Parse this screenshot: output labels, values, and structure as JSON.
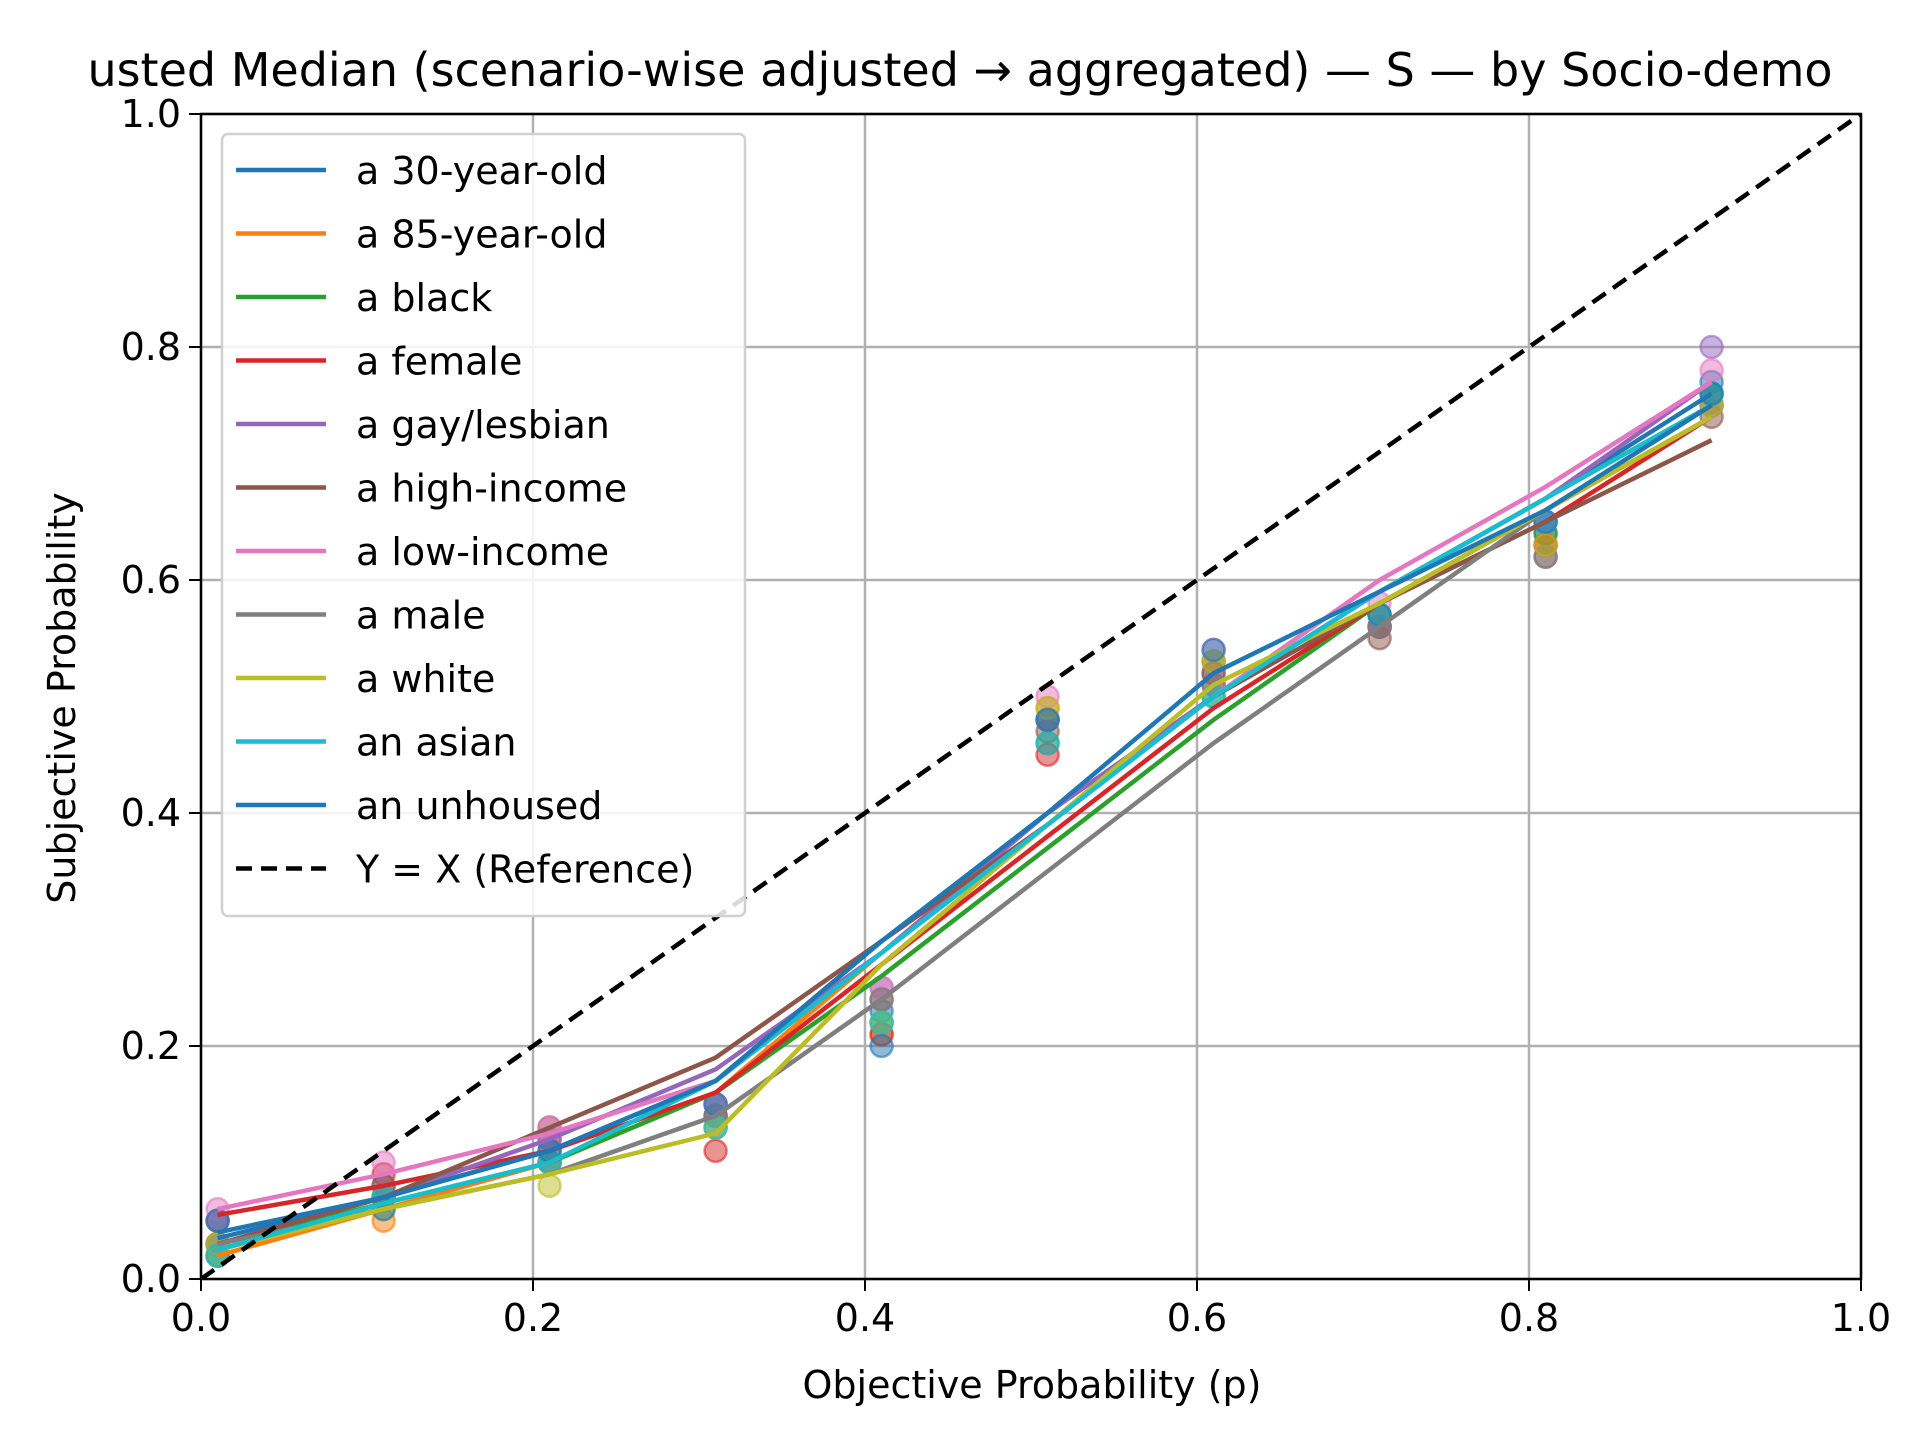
{
  "chart_data": {
    "type": "line",
    "title": "usted Median (scenario-wise adjusted → aggregated) — S — by Socio-demo",
    "xlabel": "Objective Probability (p)",
    "ylabel": "Subjective Probability",
    "xlim": [
      0.0,
      1.0
    ],
    "ylim": [
      0.0,
      1.0
    ],
    "xticks": [
      "0.0",
      "0.2",
      "0.4",
      "0.6",
      "0.8",
      "1.0"
    ],
    "yticks": [
      "0.0",
      "0.2",
      "0.4",
      "0.6",
      "0.8",
      "1.0"
    ],
    "grid": true,
    "legend_position": "upper-left",
    "x": [
      0.01,
      0.11,
      0.21,
      0.31,
      0.41,
      0.51,
      0.61,
      0.71,
      0.81,
      0.91
    ],
    "series": [
      {
        "name": "a 30-year-old",
        "color": "#1f77b4",
        "line": [
          0.035,
          0.07,
          0.11,
          0.17,
          0.29,
          0.4,
          0.5,
          0.59,
          0.67,
          0.76
        ],
        "points": [
          0.03,
          0.07,
          0.11,
          0.14,
          0.23,
          0.48,
          0.53,
          0.56,
          0.64,
          0.77
        ]
      },
      {
        "name": "a 85-year-old",
        "color": "#ff7f0e",
        "line": [
          0.02,
          0.06,
          0.1,
          0.16,
          0.28,
          0.39,
          0.5,
          0.59,
          0.67,
          0.75
        ],
        "points": [
          0.02,
          0.05,
          0.1,
          0.13,
          0.21,
          0.49,
          0.53,
          0.56,
          0.63,
          0.76
        ]
      },
      {
        "name": "a black",
        "color": "#2ca02c",
        "line": [
          0.03,
          0.065,
          0.1,
          0.16,
          0.26,
          0.37,
          0.48,
          0.58,
          0.66,
          0.75
        ],
        "points": [
          0.02,
          0.07,
          0.1,
          0.15,
          0.22,
          0.46,
          0.5,
          0.57,
          0.64,
          0.76
        ]
      },
      {
        "name": "a female",
        "color": "#d62728",
        "line": [
          0.055,
          0.08,
          0.11,
          0.16,
          0.27,
          0.38,
          0.49,
          0.58,
          0.65,
          0.74
        ],
        "points": [
          0.05,
          0.09,
          0.12,
          0.11,
          0.21,
          0.45,
          0.51,
          0.56,
          0.63,
          0.75
        ]
      },
      {
        "name": "a gay/lesbian",
        "color": "#9467bd",
        "line": [
          0.03,
          0.07,
          0.12,
          0.18,
          0.28,
          0.4,
          0.5,
          0.59,
          0.67,
          0.77
        ],
        "points": [
          0.05,
          0.08,
          0.12,
          0.15,
          0.25,
          0.48,
          0.52,
          0.56,
          0.65,
          0.8
        ]
      },
      {
        "name": "a high-income",
        "color": "#8c564b",
        "line": [
          0.03,
          0.07,
          0.13,
          0.19,
          0.29,
          0.39,
          0.5,
          0.58,
          0.65,
          0.72
        ],
        "points": [
          0.03,
          0.08,
          0.13,
          0.14,
          0.24,
          0.47,
          0.52,
          0.55,
          0.62,
          0.74
        ]
      },
      {
        "name": "a low-income",
        "color": "#e377c2",
        "line": [
          0.06,
          0.09,
          0.125,
          0.17,
          0.28,
          0.39,
          0.5,
          0.6,
          0.68,
          0.77
        ],
        "points": [
          0.06,
          0.1,
          0.13,
          0.15,
          0.25,
          0.5,
          0.54,
          0.58,
          0.65,
          0.78
        ]
      },
      {
        "name": "a male",
        "color": "#7f7f7f",
        "line": [
          0.03,
          0.06,
          0.09,
          0.14,
          0.24,
          0.35,
          0.46,
          0.56,
          0.66,
          0.74
        ],
        "points": [
          0.03,
          0.07,
          0.1,
          0.14,
          0.24,
          0.48,
          0.51,
          0.56,
          0.62,
          0.75
        ]
      },
      {
        "name": "a white",
        "color": "#bcbd22",
        "line": [
          0.025,
          0.06,
          0.09,
          0.125,
          0.27,
          0.39,
          0.51,
          0.58,
          0.66,
          0.74
        ],
        "points": [
          0.03,
          0.06,
          0.08,
          0.13,
          0.22,
          0.49,
          0.53,
          0.57,
          0.63,
          0.75
        ]
      },
      {
        "name": "an asian",
        "color": "#17becf",
        "line": [
          0.025,
          0.065,
          0.1,
          0.17,
          0.28,
          0.39,
          0.5,
          0.59,
          0.67,
          0.75
        ],
        "points": [
          0.02,
          0.07,
          0.1,
          0.13,
          0.22,
          0.46,
          0.5,
          0.57,
          0.65,
          0.76
        ]
      },
      {
        "name": "an unhoused",
        "color": "#1f77b4",
        "line": [
          0.04,
          0.07,
          0.11,
          0.17,
          0.29,
          0.4,
          0.52,
          0.59,
          0.66,
          0.75
        ],
        "points": [
          0.05,
          0.06,
          0.11,
          0.15,
          0.2,
          0.48,
          0.54,
          0.57,
          0.65,
          0.76
        ]
      }
    ],
    "reference": {
      "name": "Y = X (Reference)",
      "color": "#000000",
      "style": "dashed"
    }
  }
}
